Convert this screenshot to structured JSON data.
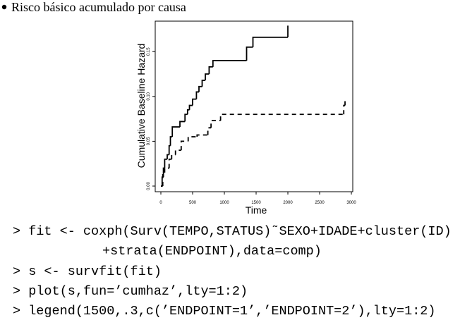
{
  "heading": "Risco básico acumulado por causa",
  "chart_data": {
    "type": "step",
    "xlabel": "Time",
    "ylabel": "Cumulative Baseline Hazard",
    "xlim": [
      -89,
      3022
    ],
    "ylim": [
      -0.0063,
      0.184
    ],
    "xticks": [
      0,
      500,
      1000,
      1500,
      2000,
      2500,
      3000
    ],
    "yticks": [
      {
        "value": 0,
        "label": "0.00"
      },
      {
        "value": 0.05,
        "label": "0.05"
      },
      {
        "value": 0.1,
        "label": "0.10"
      },
      {
        "value": 0.15,
        "label": "0.15"
      }
    ],
    "series": [
      {
        "color": "#000000",
        "line_style": "solid",
        "x": [
          0,
          20,
          40,
          60,
          100,
          130,
          150,
          180,
          300,
          380,
          420,
          450,
          500,
          560,
          600,
          650,
          700,
          760,
          820,
          1350,
          1450,
          2000
        ],
        "values": [
          0,
          0.01,
          0.02,
          0.03,
          0.035,
          0.045,
          0.055,
          0.066,
          0.072,
          0.08,
          0.085,
          0.09,
          0.097,
          0.105,
          0.111,
          0.118,
          0.125,
          0.133,
          0.14,
          0.155,
          0.166,
          0.179
        ]
      },
      {
        "color": "#000000",
        "line_style": "dashed",
        "x": [
          0,
          30,
          60,
          130,
          170,
          230,
          320,
          430,
          570,
          740,
          790,
          940,
          2880,
          2900
        ],
        "values": [
          0,
          0.015,
          0.02,
          0.03,
          0.035,
          0.04,
          0.05,
          0.055,
          0.057,
          0.065,
          0.073,
          0.08,
          0.09,
          0.097
        ]
      }
    ]
  },
  "code": [
    "> fit <- coxph(Surv(TEMPO,STATUS)˜SEXO+IDADE+cluster(ID)",
    "+strata(ENDPOINT),data=comp)",
    "> s <- survfit(fit)",
    "> plot(s,fun=’cumhaz’,lty=1:2)",
    "> legend(1500,.3,c(’ENDPOINT=1’,’ENDPOINT=2’),lty=1:2)"
  ]
}
